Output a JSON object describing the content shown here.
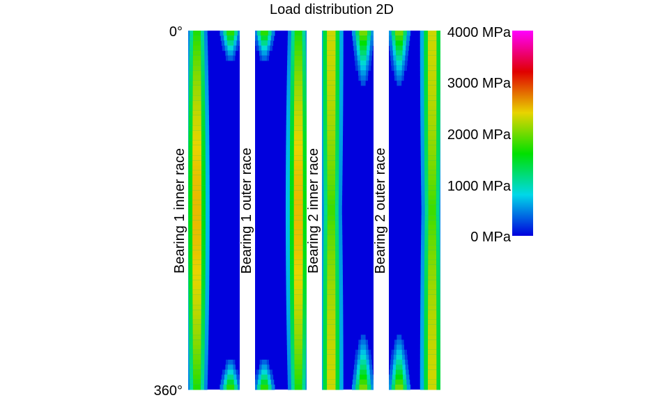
{
  "chart_data": {
    "type": "heatmap",
    "title": "Load distribution 2D",
    "y_axis": {
      "ticks": [
        "0°",
        "360°"
      ],
      "range": [
        0,
        360
      ]
    },
    "colorbar": {
      "ticks": [
        "4000 MPa",
        "3000 MPa",
        "2000 MPa",
        "1000 MPa",
        "0 MPa"
      ],
      "tick_values": [
        4000,
        3000,
        2000,
        1000,
        0
      ],
      "range": [
        0,
        4000
      ],
      "colors": [
        "#0000dd",
        "#00d8e8",
        "#00e000",
        "#e8d400",
        "#e00000",
        "#ff00ff"
      ]
    },
    "panels": [
      {
        "label": "Bearing 1 inner race",
        "bands": [
          {
            "center": 0.17,
            "min_peak": 1700,
            "max_peak": 2500,
            "peak_angle": 180
          },
          {
            "center": 0.82,
            "min_peak": 0,
            "max_peak": 1900,
            "active_angles": [
              [
                0,
                40
              ],
              [
                320,
                360
              ]
            ]
          }
        ]
      },
      {
        "label": "Bearing 1 outer race",
        "bands": [
          {
            "center": 0.18,
            "min_peak": 0,
            "max_peak": 1900,
            "active_angles": [
              [
                0,
                40
              ],
              [
                320,
                360
              ]
            ]
          },
          {
            "center": 0.84,
            "min_peak": 1700,
            "max_peak": 2500,
            "peak_angle": 180
          }
        ]
      },
      {
        "label": "Bearing 2 inner race",
        "bands": [
          {
            "center": 0.18,
            "min_peak": 1800,
            "max_peak": 2300,
            "peak_angle": 0
          },
          {
            "center": 0.8,
            "min_peak": 0,
            "max_peak": 2100,
            "active_angles": [
              [
                0,
                70
              ],
              [
                290,
                360
              ]
            ]
          }
        ]
      },
      {
        "label": "Bearing 2 outer race",
        "bands": [
          {
            "center": 0.2,
            "min_peak": 0,
            "max_peak": 2100,
            "active_angles": [
              [
                0,
                70
              ],
              [
                290,
                360
              ]
            ]
          },
          {
            "center": 0.84,
            "min_peak": 1800,
            "max_peak": 2300,
            "peak_angle": 0
          }
        ]
      }
    ]
  }
}
